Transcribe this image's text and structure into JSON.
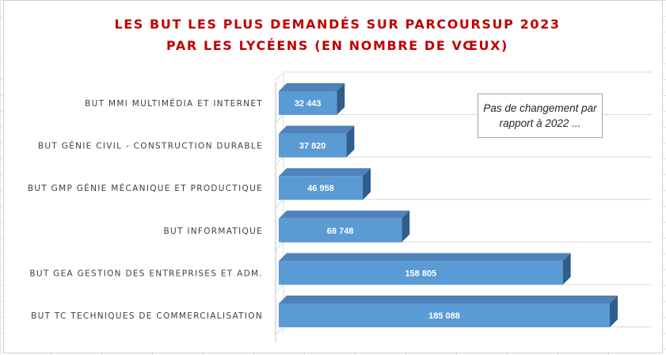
{
  "chart_data": {
    "type": "bar",
    "orientation": "horizontal",
    "title": [
      "LES BUT LES PLUS DEMANDÉS SUR PARCOURSUP 2023",
      "PAR LES LYCÉENS (EN NOMBRE DE VŒUX)"
    ],
    "categories": [
      "BUT MMI MULTIMÉDIA ET INTERNET",
      "BUT GÉNIE CIVIL - CONSTRUCTION DURABLE",
      "BUT GMP GÉNIE MÉCANIQUE ET PRODUCTIQUE",
      "BUT INFORMATIQUE",
      "BUT GEA GESTION DES ENTREPRISES ET ADM.",
      "BUT TC TECHNIQUES DE COMMERCIALISATION"
    ],
    "values": [
      32443,
      37820,
      46958,
      68748,
      158805,
      185088
    ],
    "value_labels": [
      "32 443",
      "37 820",
      "46 958",
      "68 748",
      "158 805",
      "185 088"
    ],
    "annotation": "Pas de changement par rapport à 2022 ...",
    "xlim": [
      0,
      200000
    ],
    "grid": true,
    "legend": "none",
    "style": "3d",
    "colors": {
      "bar_front": "#5b9bd5",
      "bar_top": "#4f82b8",
      "bar_side": "#2f5d8c",
      "title": "#c00000",
      "gridline": "#d9d9d9"
    }
  }
}
